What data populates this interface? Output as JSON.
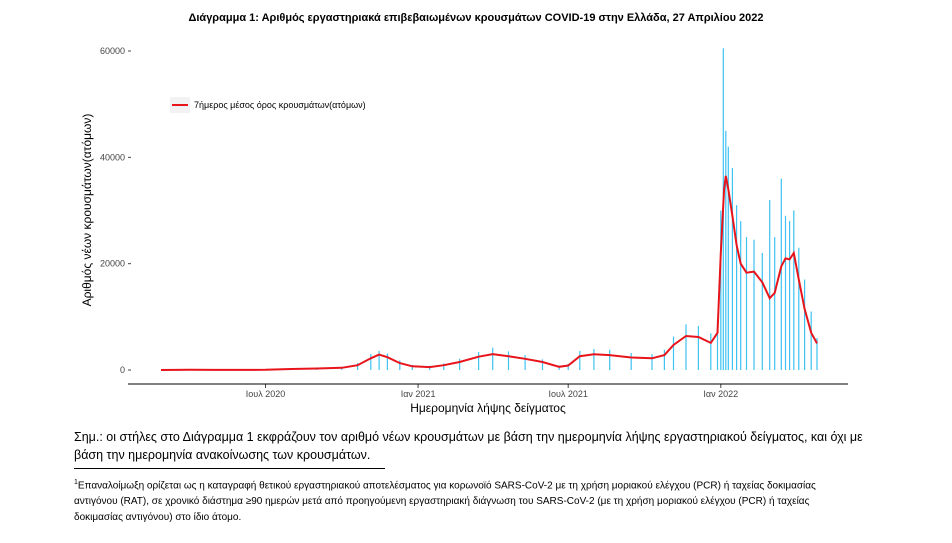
{
  "chart_data": {
    "type": "bar",
    "title": "Διάγραμμα 1: Αριθμός εργαστηριακά επιβεβαιωμένων κρουσμάτων COVID-19 στην Ελλάδα, 27 Απριλίου 2022",
    "xlabel": "Ημερομηνία λήψης δείγματος",
    "ylabel": "Αριθμός νέων κρουσμάτων(ατόμων)",
    "xlim": [
      "2020-02-26",
      "2022-04-27"
    ],
    "ylim": [
      0,
      60000
    ],
    "x_ticks": [
      {
        "date": "2020-07-01",
        "label": "Ιουλ 2020"
      },
      {
        "date": "2021-01-01",
        "label": "Ιαν 2021"
      },
      {
        "date": "2021-07-01",
        "label": "Ιουλ 2021"
      },
      {
        "date": "2022-01-01",
        "label": "Ιαν 2022"
      }
    ],
    "y_ticks": [
      0,
      20000,
      40000,
      60000
    ],
    "grid": false,
    "legend_position": "top-left",
    "bar_color": "#3ec3f2",
    "line_color": "#e8141b",
    "series": [
      {
        "name": "7ήμερος μέσος όρος κρουσμάτων(ατόμων)",
        "type": "line",
        "points": [
          [
            "2020-02-26",
            0
          ],
          [
            "2020-04-01",
            60
          ],
          [
            "2020-05-01",
            15
          ],
          [
            "2020-06-01",
            20
          ],
          [
            "2020-07-01",
            40
          ],
          [
            "2020-08-01",
            180
          ],
          [
            "2020-09-01",
            280
          ],
          [
            "2020-10-01",
            420
          ],
          [
            "2020-10-20",
            900
          ],
          [
            "2020-11-05",
            2200
          ],
          [
            "2020-11-15",
            2900
          ],
          [
            "2020-11-25",
            2400
          ],
          [
            "2020-12-10",
            1300
          ],
          [
            "2020-12-25",
            700
          ],
          [
            "2021-01-15",
            550
          ],
          [
            "2021-02-01",
            900
          ],
          [
            "2021-02-20",
            1500
          ],
          [
            "2021-03-15",
            2500
          ],
          [
            "2021-04-01",
            3000
          ],
          [
            "2021-04-20",
            2600
          ],
          [
            "2021-05-10",
            2100
          ],
          [
            "2021-05-31",
            1500
          ],
          [
            "2021-06-20",
            600
          ],
          [
            "2021-07-01",
            850
          ],
          [
            "2021-07-15",
            2600
          ],
          [
            "2021-08-01",
            2950
          ],
          [
            "2021-08-20",
            2800
          ],
          [
            "2021-09-15",
            2350
          ],
          [
            "2021-10-10",
            2200
          ],
          [
            "2021-10-25",
            2800
          ],
          [
            "2021-11-05",
            4700
          ],
          [
            "2021-11-20",
            6400
          ],
          [
            "2021-12-05",
            6200
          ],
          [
            "2021-12-20",
            5100
          ],
          [
            "2021-12-28",
            7000
          ],
          [
            "2022-01-01",
            22000
          ],
          [
            "2022-01-05",
            34000
          ],
          [
            "2022-01-07",
            36500
          ],
          [
            "2022-01-10",
            34000
          ],
          [
            "2022-01-15",
            29000
          ],
          [
            "2022-01-20",
            23500
          ],
          [
            "2022-01-25",
            20000
          ],
          [
            "2022-02-01",
            18300
          ],
          [
            "2022-02-10",
            18500
          ],
          [
            "2022-02-20",
            16500
          ],
          [
            "2022-03-01",
            13500
          ],
          [
            "2022-03-07",
            14500
          ],
          [
            "2022-03-15",
            19500
          ],
          [
            "2022-03-20",
            21000
          ],
          [
            "2022-03-25",
            20800
          ],
          [
            "2022-03-30",
            22000
          ],
          [
            "2022-04-05",
            17000
          ],
          [
            "2022-04-12",
            11500
          ],
          [
            "2022-04-20",
            7000
          ],
          [
            "2022-04-27",
            5000
          ]
        ]
      },
      {
        "name": "daily_cases",
        "type": "bar",
        "points": [
          [
            "2020-02-26",
            0
          ],
          [
            "2020-04-01",
            90
          ],
          [
            "2020-05-01",
            15
          ],
          [
            "2020-06-01",
            25
          ],
          [
            "2020-07-01",
            55
          ],
          [
            "2020-08-01",
            250
          ],
          [
            "2020-09-01",
            380
          ],
          [
            "2020-10-01",
            600
          ],
          [
            "2020-10-20",
            1300
          ],
          [
            "2020-11-05",
            3000
          ],
          [
            "2020-11-15",
            3600
          ],
          [
            "2020-11-25",
            3100
          ],
          [
            "2020-12-10",
            1800
          ],
          [
            "2020-12-25",
            950
          ],
          [
            "2021-01-15",
            800
          ],
          [
            "2021-02-01",
            1250
          ],
          [
            "2021-02-20",
            2100
          ],
          [
            "2021-03-15",
            3400
          ],
          [
            "2021-04-01",
            4200
          ],
          [
            "2021-04-20",
            3500
          ],
          [
            "2021-05-10",
            2800
          ],
          [
            "2021-05-31",
            2000
          ],
          [
            "2021-06-20",
            850
          ],
          [
            "2021-07-01",
            1150
          ],
          [
            "2021-07-15",
            3600
          ],
          [
            "2021-08-01",
            3950
          ],
          [
            "2021-08-20",
            3800
          ],
          [
            "2021-09-15",
            3200
          ],
          [
            "2021-10-10",
            3000
          ],
          [
            "2021-10-25",
            3800
          ],
          [
            "2021-11-05",
            6300
          ],
          [
            "2021-11-20",
            8600
          ],
          [
            "2021-12-05",
            8300
          ],
          [
            "2021-12-20",
            6900
          ],
          [
            "2021-12-28",
            9500
          ],
          [
            "2022-01-01",
            30000
          ],
          [
            "2022-01-04",
            60500
          ],
          [
            "2022-01-07",
            45000
          ],
          [
            "2022-01-10",
            42000
          ],
          [
            "2022-01-15",
            38000
          ],
          [
            "2022-01-20",
            31000
          ],
          [
            "2022-01-25",
            28000
          ],
          [
            "2022-02-01",
            25000
          ],
          [
            "2022-02-10",
            24500
          ],
          [
            "2022-02-20",
            22000
          ],
          [
            "2022-03-01",
            32000
          ],
          [
            "2022-03-07",
            25000
          ],
          [
            "2022-03-15",
            36000
          ],
          [
            "2022-03-20",
            29000
          ],
          [
            "2022-03-25",
            28000
          ],
          [
            "2022-03-30",
            30000
          ],
          [
            "2022-04-05",
            23000
          ],
          [
            "2022-04-12",
            17000
          ],
          [
            "2022-04-20",
            11000
          ],
          [
            "2022-04-27",
            6000
          ]
        ]
      }
    ]
  },
  "note": "Σημ.: οι στήλες στο Διάγραμμα 1 εκφράζουν τον αριθμό νέων κρουσμάτων με βάση την ημερομηνία λήψης εργαστηριακού δείγματος, και όχι με βάση την ημερομηνία ανακοίνωσης των κρουσμάτων.",
  "footnote_mark": "1",
  "footnote": "Επαναλοίμωξη ορίζεται ως η καταγραφή θετικού εργαστηριακού αποτελέσματος για κορωνοϊό SARS-CoV-2 με τη χρήση μοριακού ελέγχου (PCR) ή ταχείας δοκιμασίας αντιγόνου (RAT), σε χρονικό διάστημα ≥90 ημερών μετά από προηγούμενη εργαστηριακή διάγνωση του SARS-CoV-2 (με τη χρήση μοριακού ελέγχου (PCR) ή ταχείας δοκιμασίας αντιγόνου) στο ίδιο άτομο."
}
